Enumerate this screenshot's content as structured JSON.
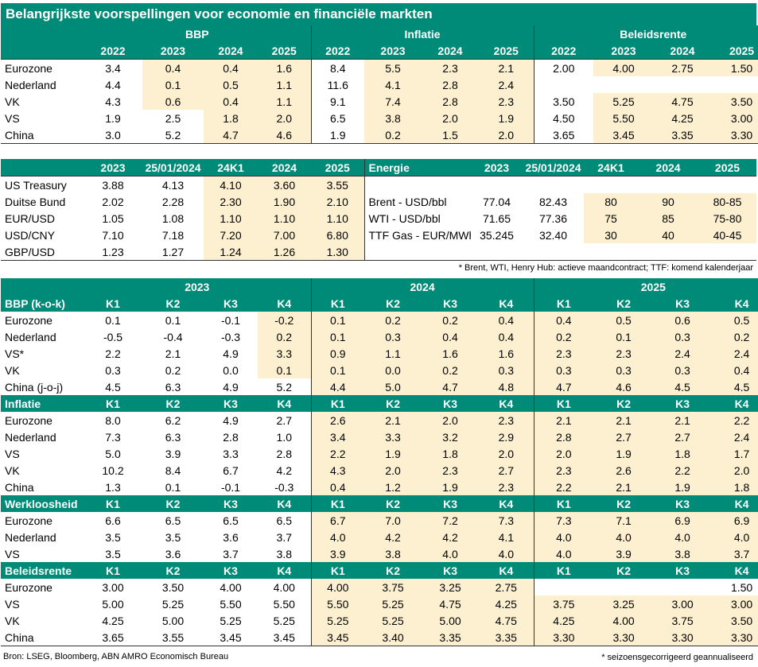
{
  "title": "Belangrijkste voorspellingen voor economie en financiële markten",
  "colors": {
    "teal": "#008a78",
    "highlight": "#fdf0d0"
  },
  "table1": {
    "groups": [
      "BBP",
      "Inflatie",
      "Beleidsrente"
    ],
    "years": [
      "2022",
      "2023",
      "2024",
      "2025"
    ],
    "rows": [
      {
        "label": "Eurozone",
        "cells": [
          "3.4",
          "0.4",
          "0.4",
          "1.6",
          "8.4",
          "5.5",
          "2.3",
          "2.1",
          "2.00",
          "4.00",
          "2.75",
          "1.50"
        ]
      },
      {
        "label": "Nederland",
        "cells": [
          "4.4",
          "0.1",
          "0.5",
          "1.1",
          "11.6",
          "4.1",
          "2.8",
          "2.4",
          "",
          "",
          "",
          ""
        ]
      },
      {
        "label": "VK",
        "cells": [
          "4.3",
          "0.6",
          "0.4",
          "1.1",
          "9.1",
          "7.4",
          "2.8",
          "2.3",
          "3.50",
          "5.25",
          "4.75",
          "3.50"
        ]
      },
      {
        "label": "VS",
        "cells": [
          "1.9",
          "2.5",
          "1.8",
          "2.0",
          "6.5",
          "3.8",
          "2.0",
          "1.9",
          "4.50",
          "5.50",
          "4.25",
          "3.00"
        ]
      },
      {
        "label": "China",
        "cells": [
          "3.0",
          "5.2",
          "4.7",
          "4.6",
          "1.9",
          "0.2",
          "1.5",
          "2.0",
          "3.65",
          "3.45",
          "3.35",
          "3.30"
        ]
      }
    ]
  },
  "table2": {
    "headers_left": [
      "2023",
      "25/01/2024",
      "24K1",
      "2024",
      "2025"
    ],
    "energy_label": "Energie",
    "headers_right": [
      "2023",
      "25/01/2024",
      "24K1",
      "2024",
      "2025"
    ],
    "rows": [
      {
        "label": "US Treasury",
        "cells": [
          "3.88",
          "4.13",
          "4.10",
          "3.60",
          "3.55"
        ],
        "elabel": "",
        "ecells": [
          "",
          "",
          "",
          "",
          ""
        ]
      },
      {
        "label": "Duitse Bund",
        "cells": [
          "2.02",
          "2.28",
          "2.30",
          "1.90",
          "2.10"
        ],
        "elabel": "Brent - USD/bbl",
        "ecells": [
          "77.04",
          "82.43",
          "80",
          "90",
          "80-85"
        ]
      },
      {
        "label": "EUR/USD",
        "cells": [
          "1.05",
          "1.08",
          "1.10",
          "1.10",
          "1.10"
        ],
        "elabel": "WTI - USD/bbl",
        "ecells": [
          "71.65",
          "77.36",
          "75",
          "85",
          "75-80"
        ]
      },
      {
        "label": "USD/CNY",
        "cells": [
          "7.10",
          "7.18",
          "7.20",
          "7.00",
          "6.80"
        ],
        "elabel": "TTF Gas - EUR/MWh",
        "ecells": [
          "35.245",
          "32.40",
          "30",
          "40",
          "40-45"
        ]
      },
      {
        "label": "GBP/USD",
        "cells": [
          "1.23",
          "1.27",
          "1.24",
          "1.26",
          "1.30"
        ],
        "elabel": "",
        "ecells": [
          "",
          "",
          "",
          "",
          ""
        ]
      }
    ],
    "footnote": "* Brent, WTI, Henry Hub: actieve maandcontract; TTF: komend kalenderjaar"
  },
  "table3": {
    "years": [
      "2023",
      "2024",
      "2025"
    ],
    "quarters": [
      "K1",
      "K2",
      "K3",
      "K4"
    ],
    "sections": [
      {
        "title": "BBP (k-o-k)",
        "rows": [
          {
            "label": "Eurozone",
            "cells": [
              "0.1",
              "0.1",
              "-0.1",
              "-0.2",
              "0.1",
              "0.2",
              "0.2",
              "0.4",
              "0.4",
              "0.5",
              "0.6",
              "0.5"
            ]
          },
          {
            "label": "Nederland",
            "cells": [
              "-0.5",
              "-0.4",
              "-0.3",
              "0.2",
              "0.1",
              "0.3",
              "0.4",
              "0.4",
              "0.2",
              "0.1",
              "0.3",
              "0.2"
            ]
          },
          {
            "label": "VS*",
            "cells": [
              "2.2",
              "2.1",
              "4.9",
              "3.3",
              "0.9",
              "1.1",
              "1.6",
              "1.6",
              "2.3",
              "2.3",
              "2.4",
              "2.4"
            ]
          },
          {
            "label": "VK",
            "cells": [
              "0.3",
              "0.2",
              "0.0",
              "0.1",
              "0.1",
              "0.0",
              "0.2",
              "0.3",
              "0.3",
              "0.3",
              "0.3",
              "0.4"
            ]
          },
          {
            "label": "China (j-o-j)",
            "cells": [
              "4.5",
              "6.3",
              "4.9",
              "5.2",
              "4.4",
              "5.0",
              "4.7",
              "4.8",
              "4.7",
              "4.6",
              "4.5",
              "4.5"
            ]
          }
        ]
      },
      {
        "title": "Inflatie",
        "rows": [
          {
            "label": "Eurozone",
            "cells": [
              "8.0",
              "6.2",
              "4.9",
              "2.7",
              "2.6",
              "2.1",
              "2.0",
              "2.3",
              "2.1",
              "2.1",
              "2.1",
              "2.2"
            ]
          },
          {
            "label": "Nederland",
            "cells": [
              "7.3",
              "6.3",
              "2.8",
              "1.0",
              "3.4",
              "3.3",
              "3.2",
              "2.9",
              "2.8",
              "2.7",
              "2.7",
              "2.4"
            ]
          },
          {
            "label": "VS",
            "cells": [
              "5.0",
              "3.9",
              "3.3",
              "2.8",
              "2.2",
              "1.9",
              "1.8",
              "2.0",
              "2.0",
              "1.9",
              "1.8",
              "1.7"
            ]
          },
          {
            "label": "VK",
            "cells": [
              "10.2",
              "8.4",
              "6.7",
              "4.2",
              "4.3",
              "2.0",
              "2.3",
              "2.7",
              "2.3",
              "2.6",
              "2.2",
              "2.0"
            ]
          },
          {
            "label": "China",
            "cells": [
              "1.3",
              "0.1",
              "-0.1",
              "-0.3",
              "0.4",
              "1.2",
              "1.9",
              "2.3",
              "2.2",
              "2.1",
              "1.9",
              "1.8"
            ]
          }
        ]
      },
      {
        "title": "Werkloosheid",
        "rows": [
          {
            "label": "Eurozone",
            "cells": [
              "6.6",
              "6.5",
              "6.5",
              "6.5",
              "6.7",
              "7.0",
              "7.2",
              "7.3",
              "7.3",
              "7.1",
              "6.9",
              "6.9"
            ]
          },
          {
            "label": "Nederland",
            "cells": [
              "3.5",
              "3.5",
              "3.6",
              "3.7",
              "4.0",
              "4.2",
              "4.2",
              "4.1",
              "4.0",
              "4.0",
              "4.0",
              "4.0"
            ]
          },
          {
            "label": "VS",
            "cells": [
              "3.5",
              "3.6",
              "3.7",
              "3.8",
              "3.9",
              "3.8",
              "4.0",
              "4.0",
              "4.0",
              "3.9",
              "3.8",
              "3.7"
            ]
          }
        ]
      },
      {
        "title": "Beleidsrente",
        "rows": [
          {
            "label": "Eurozone",
            "cells": [
              "3.00",
              "3.50",
              "4.00",
              "4.00",
              "4.00",
              "3.75",
              "3.25",
              "2.75",
              "",
              "",
              "",
              "1.50"
            ]
          },
          {
            "label": "VS",
            "cells": [
              "5.00",
              "5.25",
              "5.50",
              "5.50",
              "5.50",
              "5.25",
              "4.75",
              "4.25",
              "3.75",
              "3.25",
              "3.00",
              "3.00"
            ]
          },
          {
            "label": "VK",
            "cells": [
              "4.25",
              "5.00",
              "5.25",
              "5.25",
              "5.25",
              "5.25",
              "5.00",
              "4.75",
              "4.25",
              "4.00",
              "3.75",
              "3.50"
            ]
          },
          {
            "label": "China",
            "cells": [
              "3.65",
              "3.55",
              "3.45",
              "3.45",
              "3.45",
              "3.40",
              "3.35",
              "3.35",
              "3.30",
              "3.30",
              "3.30",
              "3.30"
            ]
          }
        ]
      }
    ]
  },
  "source": "Bron: LSEG, Bloomberg, ABN AMRO Economisch Bureau",
  "footnote2": "* seizoensgecorrigeerd geannualiseerd"
}
